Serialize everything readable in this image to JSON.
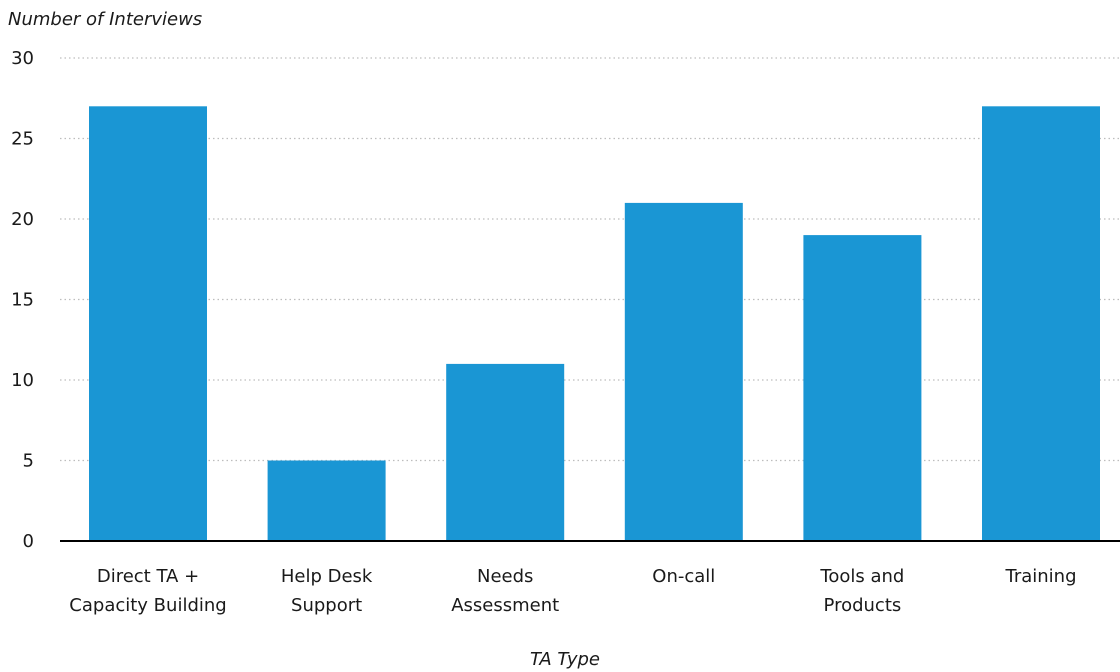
{
  "chart_data": {
    "type": "bar",
    "title": "",
    "ylabel": "Number of Interviews",
    "xlabel": "TA Type",
    "categories": [
      [
        "Direct TA +",
        "Capacity Building"
      ],
      [
        "Help Desk",
        "Support"
      ],
      [
        "Needs",
        "Assessment"
      ],
      [
        "On-call"
      ],
      [
        "Tools and",
        "Products"
      ],
      [
        "Training"
      ]
    ],
    "values": [
      27,
      5,
      11,
      21,
      19,
      27
    ],
    "ylim": [
      0,
      30
    ],
    "yticks": [
      0,
      5,
      10,
      15,
      20,
      25,
      30
    ],
    "grid": true,
    "bar_color": "#1a96d4"
  }
}
